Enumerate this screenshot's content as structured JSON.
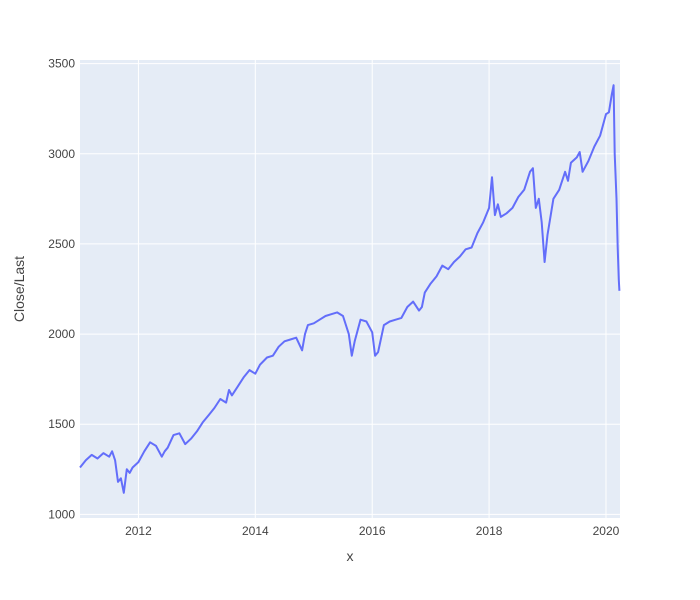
{
  "chart_data": {
    "type": "line",
    "title": "",
    "xlabel": "x",
    "ylabel": "Close/Last",
    "xlim": [
      2011.0,
      2020.24
    ],
    "ylim": [
      980,
      3520
    ],
    "x_ticks": [
      2012,
      2014,
      2016,
      2018,
      2020
    ],
    "x_tick_labels": [
      "2012",
      "2014",
      "2016",
      "2018",
      "2020"
    ],
    "y_ticks": [
      1000,
      1500,
      2000,
      2500,
      3000,
      3500
    ],
    "y_tick_labels": [
      "1000",
      "1500",
      "2000",
      "2500",
      "3000",
      "3500"
    ],
    "grid": true,
    "legend": "none",
    "series": [
      {
        "color": "#636efa",
        "x": [
          2011.0,
          2011.1,
          2011.2,
          2011.3,
          2011.4,
          2011.5,
          2011.55,
          2011.6,
          2011.65,
          2011.7,
          2011.75,
          2011.8,
          2011.85,
          2011.9,
          2012.0,
          2012.1,
          2012.2,
          2012.3,
          2012.4,
          2012.45,
          2012.5,
          2012.6,
          2012.7,
          2012.8,
          2012.9,
          2013.0,
          2013.1,
          2013.2,
          2013.3,
          2013.4,
          2013.5,
          2013.55,
          2013.6,
          2013.7,
          2013.8,
          2013.9,
          2014.0,
          2014.08,
          2014.2,
          2014.3,
          2014.4,
          2014.5,
          2014.6,
          2014.7,
          2014.8,
          2014.85,
          2014.9,
          2015.0,
          2015.1,
          2015.2,
          2015.3,
          2015.4,
          2015.5,
          2015.6,
          2015.65,
          2015.7,
          2015.8,
          2015.9,
          2016.0,
          2016.05,
          2016.1,
          2016.2,
          2016.3,
          2016.4,
          2016.5,
          2016.6,
          2016.7,
          2016.8,
          2016.85,
          2016.9,
          2017.0,
          2017.1,
          2017.2,
          2017.3,
          2017.4,
          2017.5,
          2017.6,
          2017.7,
          2017.8,
          2017.9,
          2018.0,
          2018.05,
          2018.1,
          2018.15,
          2018.2,
          2018.3,
          2018.4,
          2018.5,
          2018.6,
          2018.7,
          2018.75,
          2018.8,
          2018.85,
          2018.9,
          2018.95,
          2019.0,
          2019.1,
          2019.2,
          2019.3,
          2019.35,
          2019.4,
          2019.5,
          2019.55,
          2019.6,
          2019.7,
          2019.8,
          2019.9,
          2020.0,
          2020.05,
          2020.1,
          2020.13,
          2020.15,
          2020.18,
          2020.2,
          2020.22,
          2020.23
        ],
        "y": [
          1260,
          1300,
          1330,
          1310,
          1340,
          1320,
          1350,
          1300,
          1180,
          1200,
          1120,
          1250,
          1230,
          1260,
          1290,
          1350,
          1400,
          1380,
          1320,
          1350,
          1370,
          1440,
          1450,
          1390,
          1420,
          1460,
          1510,
          1550,
          1590,
          1640,
          1620,
          1690,
          1660,
          1710,
          1760,
          1800,
          1780,
          1830,
          1870,
          1880,
          1930,
          1960,
          1970,
          1980,
          1910,
          2000,
          2050,
          2060,
          2080,
          2100,
          2110,
          2120,
          2100,
          2000,
          1880,
          1960,
          2080,
          2070,
          2010,
          1880,
          1900,
          2050,
          2070,
          2080,
          2090,
          2150,
          2180,
          2130,
          2150,
          2230,
          2280,
          2320,
          2380,
          2360,
          2400,
          2430,
          2470,
          2480,
          2560,
          2620,
          2700,
          2870,
          2660,
          2720,
          2650,
          2670,
          2700,
          2760,
          2800,
          2900,
          2920,
          2700,
          2750,
          2620,
          2400,
          2550,
          2750,
          2800,
          2900,
          2850,
          2950,
          2980,
          3010,
          2900,
          2960,
          3040,
          3100,
          3220,
          3230,
          3330,
          3380,
          3000,
          2750,
          2480,
          2300,
          2240
        ]
      }
    ]
  }
}
